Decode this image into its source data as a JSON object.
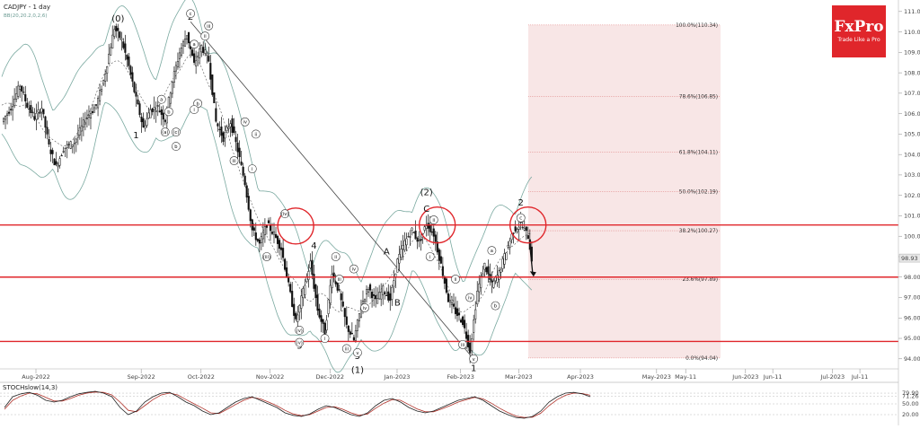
{
  "header": {
    "symbol": "CADJPY - 1 day",
    "indicator": "BB(20,20.2,0,2,6)"
  },
  "logo": {
    "title": "FxPro",
    "subtitle": "Trade Like a Pro",
    "color": "#e0262b"
  },
  "colors": {
    "resistance": "#e0262b",
    "band": "#7aa9a0",
    "fib_zone": "#f6dede",
    "candle": "#111111",
    "stoch_main": "#222222",
    "stoch_signal": "#b0332b"
  },
  "chart_data": {
    "type": "candlestick",
    "price_axis": {
      "ylim": [
        93.2,
        111.3
      ],
      "ticks": [
        "111.00",
        "110.00",
        "109.00",
        "108.00",
        "107.00",
        "106.00",
        "105.00",
        "104.00",
        "103.00",
        "102.00",
        "101.00",
        "100.00",
        "99.00",
        "98.00",
        "97.00",
        "96.00",
        "95.00",
        "94.00"
      ],
      "current": "98.93"
    },
    "time_axis": {
      "labels": [
        "Aug-2022",
        "Sep-2022",
        "Oct-2022",
        "Nov-2022",
        "Dec-2022",
        "Jan-2023",
        "Feb-2023",
        "Mar-2023",
        "Apr-2023",
        "May-2023",
        "May-11",
        "Jun-2023",
        "Jun-11",
        "Jul-2023",
        "Jul-11"
      ]
    },
    "horizontal_levels": [
      100.55,
      98.0,
      94.85
    ],
    "fibonacci": [
      {
        "label": "100.0%(110.34)",
        "value": 110.34
      },
      {
        "label": "78.6%(106.85)",
        "value": 106.85
      },
      {
        "label": "61.8%(104.11)",
        "value": 104.11
      },
      {
        "label": "50.0%(102.19)",
        "value": 102.19
      },
      {
        "label": "38.2%(100.27)",
        "value": 100.27
      },
      {
        "label": "23.6%(97.89)",
        "value": 97.89
      },
      {
        "label": "0.0%(94.04)",
        "value": 94.04
      }
    ],
    "price_path": [
      {
        "d": 0,
        "v": 105.6
      },
      {
        "d": 5,
        "v": 106.3
      },
      {
        "d": 10,
        "v": 107.4
      },
      {
        "d": 14,
        "v": 106.4
      },
      {
        "d": 18,
        "v": 105.8
      },
      {
        "d": 22,
        "v": 106.3
      },
      {
        "d": 26,
        "v": 104.4
      },
      {
        "d": 30,
        "v": 103.4
      },
      {
        "d": 34,
        "v": 104.3
      },
      {
        "d": 40,
        "v": 104.6
      },
      {
        "d": 46,
        "v": 105.7
      },
      {
        "d": 52,
        "v": 106.4
      },
      {
        "d": 56,
        "v": 107.6
      },
      {
        "d": 62,
        "v": 110.2
      },
      {
        "d": 66,
        "v": 109.6
      },
      {
        "d": 70,
        "v": 108.3
      },
      {
        "d": 74,
        "v": 106.7
      },
      {
        "d": 78,
        "v": 105.3
      },
      {
        "d": 82,
        "v": 106.2
      },
      {
        "d": 86,
        "v": 106.3
      },
      {
        "d": 90,
        "v": 105.7
      },
      {
        "d": 94,
        "v": 107.6
      },
      {
        "d": 98,
        "v": 109.0
      },
      {
        "d": 102,
        "v": 109.9
      },
      {
        "d": 106,
        "v": 108.4
      },
      {
        "d": 110,
        "v": 109.3
      },
      {
        "d": 114,
        "v": 108.6
      },
      {
        "d": 118,
        "v": 105.6
      },
      {
        "d": 122,
        "v": 104.8
      },
      {
        "d": 126,
        "v": 105.6
      },
      {
        "d": 130,
        "v": 104.2
      },
      {
        "d": 134,
        "v": 102.6
      },
      {
        "d": 138,
        "v": 100.3
      },
      {
        "d": 142,
        "v": 99.6
      },
      {
        "d": 146,
        "v": 100.6
      },
      {
        "d": 150,
        "v": 100.1
      },
      {
        "d": 154,
        "v": 99.4
      },
      {
        "d": 158,
        "v": 97.6
      },
      {
        "d": 162,
        "v": 95.8
      },
      {
        "d": 166,
        "v": 97.3
      },
      {
        "d": 170,
        "v": 98.7
      },
      {
        "d": 174,
        "v": 96.4
      },
      {
        "d": 178,
        "v": 95.3
      },
      {
        "d": 182,
        "v": 98.3
      },
      {
        "d": 186,
        "v": 97.2
      },
      {
        "d": 190,
        "v": 95.6
      },
      {
        "d": 194,
        "v": 94.9
      },
      {
        "d": 198,
        "v": 96.6
      },
      {
        "d": 202,
        "v": 97.5
      },
      {
        "d": 206,
        "v": 96.8
      },
      {
        "d": 210,
        "v": 97.4
      },
      {
        "d": 214,
        "v": 96.9
      },
      {
        "d": 218,
        "v": 98.8
      },
      {
        "d": 222,
        "v": 99.7
      },
      {
        "d": 226,
        "v": 100.3
      },
      {
        "d": 230,
        "v": 99.7
      },
      {
        "d": 234,
        "v": 100.6
      },
      {
        "d": 238,
        "v": 100.1
      },
      {
        "d": 242,
        "v": 98.6
      },
      {
        "d": 246,
        "v": 96.9
      },
      {
        "d": 250,
        "v": 96.3
      },
      {
        "d": 254,
        "v": 95.8
      },
      {
        "d": 258,
        "v": 94.4
      },
      {
        "d": 262,
        "v": 97.3
      },
      {
        "d": 266,
        "v": 98.6
      },
      {
        "d": 270,
        "v": 97.6
      },
      {
        "d": 274,
        "v": 98.2
      },
      {
        "d": 278,
        "v": 99.3
      },
      {
        "d": 282,
        "v": 100.3
      },
      {
        "d": 286,
        "v": 100.6
      },
      {
        "d": 290,
        "v": 100.0
      },
      {
        "d": 292,
        "v": 98.9
      }
    ],
    "wave_labels": [
      {
        "text": "(0)",
        "d": 64,
        "v": 110.5,
        "size": "big"
      },
      {
        "text": "2",
        "d": 104,
        "v": 110.6,
        "size": "big"
      },
      {
        "text": "1",
        "d": 74,
        "v": 104.8,
        "size": "big"
      },
      {
        "text": "4",
        "d": 172,
        "v": 99.4,
        "size": "big"
      },
      {
        "text": "3",
        "d": 164,
        "v": 94.5,
        "size": "big"
      },
      {
        "text": "5",
        "d": 196,
        "v": 94.0,
        "size": "big"
      },
      {
        "text": "(1)",
        "d": 196,
        "v": 93.3,
        "size": "big"
      },
      {
        "text": "A",
        "d": 212,
        "v": 99.1,
        "size": "big"
      },
      {
        "text": "B",
        "d": 218,
        "v": 96.6,
        "size": "big"
      },
      {
        "text": "(2)",
        "d": 234,
        "v": 102.0,
        "size": "big"
      },
      {
        "text": "C",
        "d": 234,
        "v": 101.2,
        "size": "big"
      },
      {
        "text": "1",
        "d": 260,
        "v": 93.4,
        "size": "big"
      },
      {
        "text": "2",
        "d": 286,
        "v": 101.5,
        "size": "big"
      }
    ],
    "circle_labels": [
      {
        "text": "iii",
        "d": 114,
        "v": 110.3
      },
      {
        "text": "c",
        "d": 104,
        "v": 110.9
      },
      {
        "text": "ii",
        "d": 112,
        "v": 109.8
      },
      {
        "text": "a",
        "d": 106,
        "v": 109.4
      },
      {
        "text": "b",
        "d": 108,
        "v": 106.5
      },
      {
        "text": "i",
        "d": 106,
        "v": 106.2
      },
      {
        "text": "a",
        "d": 88,
        "v": 106.7
      },
      {
        "text": "b",
        "d": 92,
        "v": 106.1
      },
      {
        "text": "(a)",
        "d": 90,
        "v": 105.1
      },
      {
        "text": "(c)",
        "d": 96,
        "v": 105.1
      },
      {
        "text": "b",
        "d": 96,
        "v": 104.4
      },
      {
        "text": "iv",
        "d": 134,
        "v": 105.6
      },
      {
        "text": "ii",
        "d": 140,
        "v": 105.0
      },
      {
        "text": "iii",
        "d": 128,
        "v": 103.7
      },
      {
        "text": "i",
        "d": 138,
        "v": 103.3
      },
      {
        "text": "(iv)",
        "d": 156,
        "v": 101.1
      },
      {
        "text": "(iii)",
        "d": 146,
        "v": 99.0
      },
      {
        "text": "(v)",
        "d": 164,
        "v": 95.4
      },
      {
        "text": "(v)",
        "d": 164,
        "v": 94.8
      },
      {
        "text": "ii",
        "d": 184,
        "v": 99.0
      },
      {
        "text": "iv",
        "d": 194,
        "v": 98.4
      },
      {
        "text": "iii",
        "d": 186,
        "v": 97.9
      },
      {
        "text": "i",
        "d": 178,
        "v": 95.0
      },
      {
        "text": "iv",
        "d": 200,
        "v": 96.5
      },
      {
        "text": "iii",
        "d": 190,
        "v": 94.5
      },
      {
        "text": "v",
        "d": 196,
        "v": 94.3
      },
      {
        "text": "ii",
        "d": 238,
        "v": 100.8
      },
      {
        "text": "i",
        "d": 236,
        "v": 99.0
      },
      {
        "text": "ii",
        "d": 250,
        "v": 97.9
      },
      {
        "text": "iv",
        "d": 258,
        "v": 97.0
      },
      {
        "text": "iii",
        "d": 254,
        "v": 94.7
      },
      {
        "text": "v",
        "d": 260,
        "v": 94.0
      },
      {
        "text": "a",
        "d": 270,
        "v": 99.3
      },
      {
        "text": "b",
        "d": 272,
        "v": 96.6
      },
      {
        "text": "c",
        "d": 286,
        "v": 100.9
      }
    ],
    "stochastic": {
      "title": "STOCHslow(14,3)",
      "levels": [
        "79.90",
        "71.26",
        "50.00",
        "20.00"
      ],
      "main": [
        40,
        70,
        78,
        82,
        74,
        60,
        55,
        60,
        70,
        78,
        82,
        85,
        80,
        70,
        40,
        20,
        30,
        55,
        70,
        80,
        82,
        70,
        55,
        45,
        30,
        20,
        25,
        40,
        55,
        65,
        70,
        60,
        50,
        40,
        25,
        18,
        15,
        22,
        35,
        45,
        40,
        30,
        20,
        15,
        25,
        45,
        60,
        65,
        55,
        40,
        30,
        25,
        30,
        40,
        50,
        60,
        65,
        70,
        60,
        45,
        30,
        20,
        12,
        10,
        15,
        30,
        55,
        70,
        80,
        82,
        78,
        70
      ],
      "signal": [
        35,
        60,
        72,
        80,
        78,
        68,
        58,
        58,
        65,
        74,
        80,
        83,
        82,
        75,
        55,
        32,
        28,
        45,
        62,
        75,
        80,
        75,
        62,
        50,
        38,
        25,
        23,
        35,
        48,
        60,
        68,
        64,
        55,
        45,
        32,
        22,
        17,
        20,
        30,
        40,
        42,
        35,
        25,
        18,
        22,
        38,
        52,
        62,
        60,
        48,
        36,
        28,
        28,
        36,
        45,
        55,
        62,
        68,
        64,
        52,
        38,
        26,
        16,
        12,
        13,
        24,
        45,
        62,
        74,
        80,
        79,
        74
      ]
    }
  }
}
